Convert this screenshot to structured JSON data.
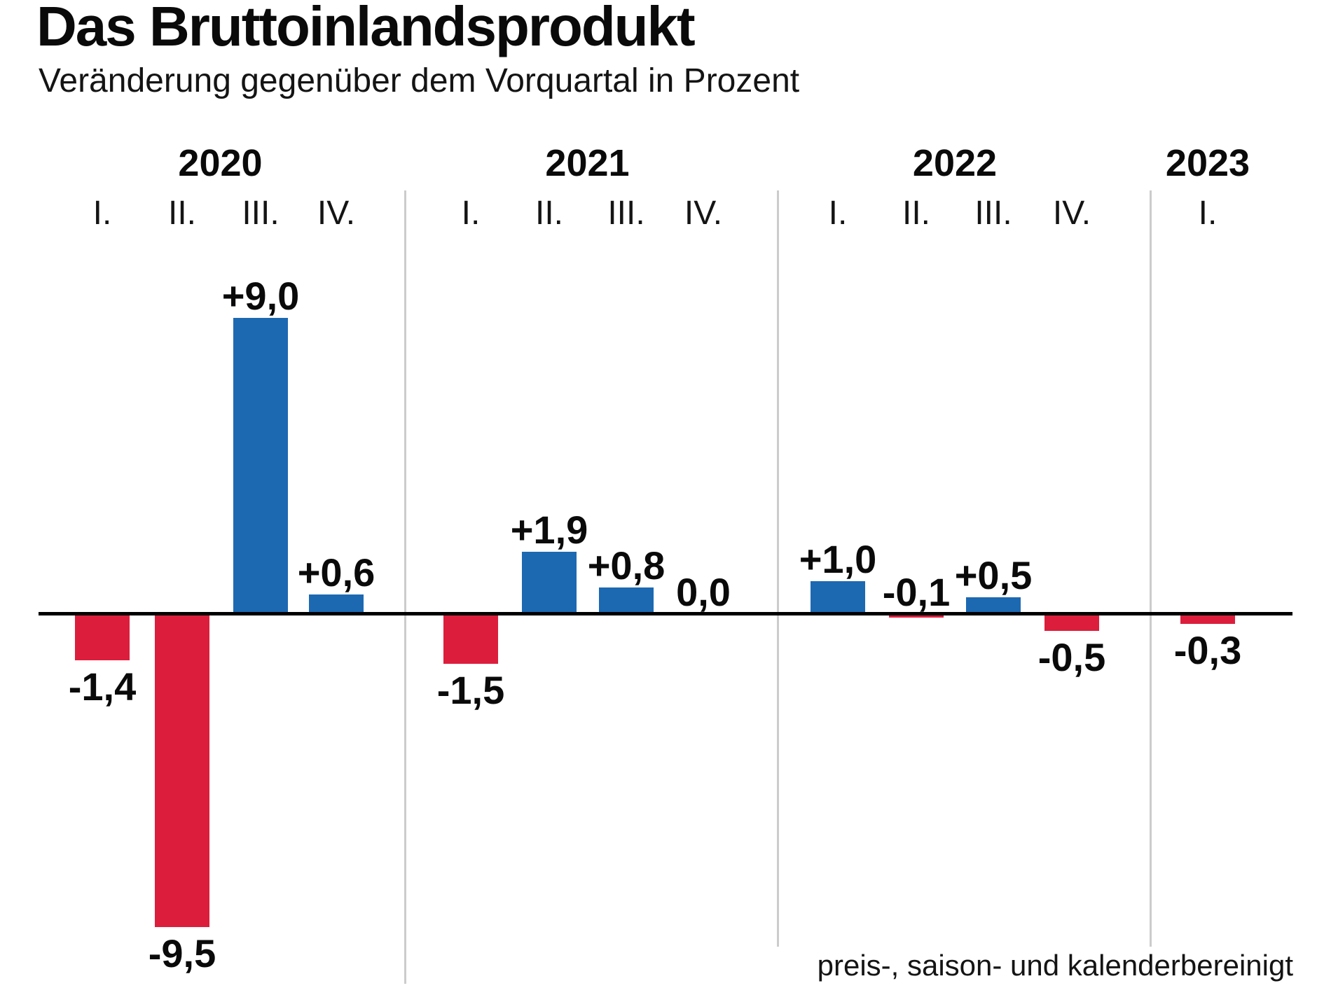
{
  "header": {
    "title": "Das Bruttoinlandsprodukt",
    "subtitle": "Veränderung gegenüber dem Vorquartal in Prozent"
  },
  "footnote": "preis-, saison- und kalenderbereinigt",
  "colors": {
    "positive_bar": "#1c69b2",
    "negative_bar": "#dc1e3c",
    "axis": "#000000",
    "year_separator": "#cccccc",
    "text": "#0a0a0a"
  },
  "chart_data": {
    "type": "bar",
    "title": "Das Bruttoinlandsprodukt",
    "subtitle": "Veränderung gegenüber dem Vorquartal in Prozent",
    "footnote": "preis-, saison- und kalenderbereinigt",
    "unit": "percent, quarter-over-quarter change",
    "ylim": [
      -10.5,
      9.8
    ],
    "grid": false,
    "legend": false,
    "positive_color": "#1c69b2",
    "negative_color": "#dc1e3c",
    "groups": [
      {
        "year": "2020",
        "quarters": [
          "I.",
          "II.",
          "III.",
          "IV."
        ],
        "values": [
          -1.4,
          -9.5,
          9.0,
          0.6
        ],
        "value_labels": [
          "-1,4",
          "-9,5",
          "+9,0",
          "+0,6"
        ]
      },
      {
        "year": "2021",
        "quarters": [
          "I.",
          "II.",
          "III.",
          "IV."
        ],
        "values": [
          -1.5,
          1.9,
          0.8,
          0.0
        ],
        "value_labels": [
          "-1,5",
          "+1,9",
          "+0,8",
          "0,0"
        ]
      },
      {
        "year": "2022",
        "quarters": [
          "I.",
          "II.",
          "III.",
          "IV."
        ],
        "values": [
          1.0,
          -0.1,
          0.5,
          -0.5
        ],
        "value_labels": [
          "+1,0",
          "-0,1",
          "+0,5",
          "-0,5"
        ]
      },
      {
        "year": "2023",
        "quarters": [
          "I."
        ],
        "values": [
          -0.3
        ],
        "value_labels": [
          "-0,3"
        ]
      }
    ]
  }
}
